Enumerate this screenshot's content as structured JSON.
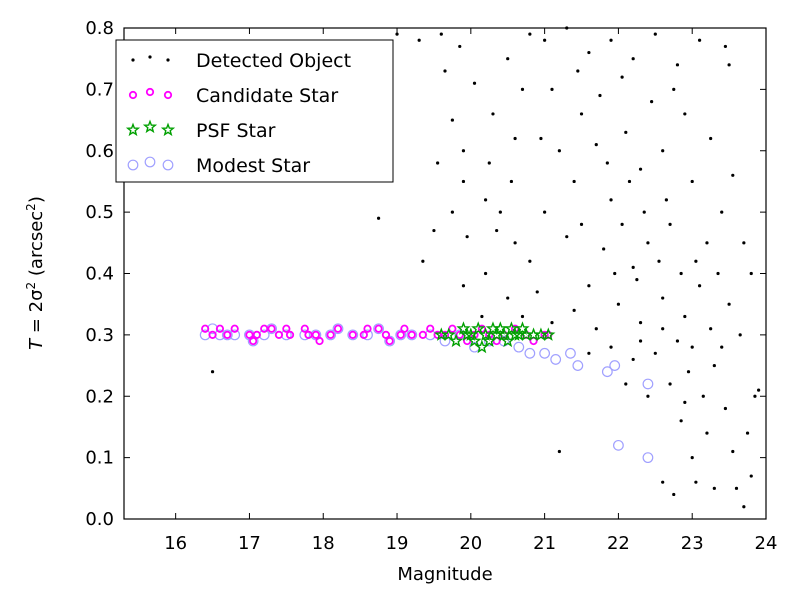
{
  "chart_data": {
    "type": "scatter",
    "xlabel": "Magnitude",
    "ylabel_main": "T",
    "ylabel_rest": " = 2σ",
    "ylabel_sup": "2",
    "ylabel_unit": " (arcsec",
    "ylabel_unit_sup": "2",
    "ylabel_close": ")",
    "xlim": [
      15.3,
      24.0
    ],
    "ylim": [
      0.0,
      0.8
    ],
    "xticks": [
      16,
      17,
      18,
      19,
      20,
      21,
      22,
      23,
      24
    ],
    "yticks": [
      0.0,
      0.1,
      0.2,
      0.3,
      0.4,
      0.5,
      0.6,
      0.7,
      0.8
    ],
    "ytick_labels": [
      "0.0",
      "0.1",
      "0.2",
      "0.3",
      "0.4",
      "0.5",
      "0.6",
      "0.7",
      "0.8"
    ],
    "grid": false,
    "legend_position": "top-left",
    "series": [
      {
        "name": "Detected Object",
        "marker": "dot",
        "color": "#000000",
        "points": [
          [
            16.5,
            0.24
          ],
          [
            18.75,
            0.49
          ],
          [
            19.35,
            0.42
          ],
          [
            21.2,
            0.11
          ],
          [
            22.6,
            0.06
          ],
          [
            22.75,
            0.04
          ],
          [
            23.05,
            0.06
          ],
          [
            23.3,
            0.05
          ],
          [
            23.7,
            0.02
          ],
          [
            19.0,
            0.79
          ],
          [
            19.3,
            0.78
          ],
          [
            19.6,
            0.79
          ],
          [
            19.65,
            0.73
          ],
          [
            19.85,
            0.77
          ],
          [
            19.75,
            0.65
          ],
          [
            19.9,
            0.6
          ],
          [
            19.55,
            0.58
          ],
          [
            20.05,
            0.71
          ],
          [
            19.75,
            0.5
          ],
          [
            19.5,
            0.47
          ],
          [
            19.95,
            0.46
          ],
          [
            19.9,
            0.38
          ],
          [
            20.2,
            0.52
          ],
          [
            19.9,
            0.55
          ],
          [
            20.3,
            0.66
          ],
          [
            20.5,
            0.75
          ],
          [
            20.6,
            0.62
          ],
          [
            20.8,
            0.79
          ],
          [
            20.7,
            0.7
          ],
          [
            21.0,
            0.78
          ],
          [
            21.3,
            0.8
          ],
          [
            21.6,
            0.76
          ],
          [
            21.9,
            0.78
          ],
          [
            22.2,
            0.75
          ],
          [
            22.5,
            0.79
          ],
          [
            22.8,
            0.74
          ],
          [
            23.1,
            0.78
          ],
          [
            23.45,
            0.77
          ],
          [
            23.5,
            0.74
          ],
          [
            23.25,
            0.62
          ],
          [
            23.55,
            0.56
          ],
          [
            23.4,
            0.5
          ],
          [
            23.7,
            0.45
          ],
          [
            23.8,
            0.4
          ],
          [
            23.85,
            0.2
          ],
          [
            23.75,
            0.14
          ],
          [
            23.8,
            0.07
          ],
          [
            23.6,
            0.05
          ],
          [
            23.9,
            0.21
          ],
          [
            23.65,
            0.3
          ],
          [
            23.5,
            0.35
          ],
          [
            23.3,
            0.25
          ],
          [
            23.45,
            0.18
          ],
          [
            23.2,
            0.14
          ],
          [
            23.0,
            0.1
          ],
          [
            22.85,
            0.16
          ],
          [
            23.15,
            0.2
          ],
          [
            22.95,
            0.24
          ],
          [
            23.55,
            0.11
          ],
          [
            20.4,
            0.5
          ],
          [
            20.6,
            0.45
          ],
          [
            20.2,
            0.4
          ],
          [
            20.5,
            0.36
          ],
          [
            20.8,
            0.42
          ],
          [
            21.0,
            0.5
          ],
          [
            21.2,
            0.6
          ],
          [
            21.4,
            0.55
          ],
          [
            21.1,
            0.7
          ],
          [
            21.5,
            0.66
          ],
          [
            21.7,
            0.61
          ],
          [
            21.9,
            0.52
          ],
          [
            22.1,
            0.63
          ],
          [
            22.3,
            0.57
          ],
          [
            22.6,
            0.6
          ],
          [
            22.9,
            0.66
          ],
          [
            23.0,
            0.55
          ],
          [
            22.7,
            0.48
          ],
          [
            22.4,
            0.45
          ],
          [
            22.2,
            0.41
          ],
          [
            21.8,
            0.44
          ],
          [
            21.6,
            0.38
          ],
          [
            21.4,
            0.34
          ],
          [
            21.7,
            0.31
          ],
          [
            22.0,
            0.35
          ],
          [
            22.3,
            0.32
          ],
          [
            22.6,
            0.36
          ],
          [
            22.9,
            0.33
          ],
          [
            23.1,
            0.38
          ],
          [
            23.2,
            0.45
          ],
          [
            22.5,
            0.27
          ],
          [
            22.8,
            0.29
          ],
          [
            23.0,
            0.28
          ],
          [
            22.2,
            0.26
          ],
          [
            21.9,
            0.28
          ],
          [
            21.6,
            0.27
          ],
          [
            22.1,
            0.22
          ],
          [
            22.4,
            0.2
          ],
          [
            22.7,
            0.22
          ],
          [
            22.9,
            0.19
          ],
          [
            21.3,
            0.46
          ],
          [
            21.5,
            0.48
          ],
          [
            20.9,
            0.37
          ],
          [
            20.7,
            0.33
          ],
          [
            21.1,
            0.32
          ],
          [
            22.05,
            0.48
          ],
          [
            22.35,
            0.5
          ],
          [
            22.65,
            0.52
          ],
          [
            22.15,
            0.55
          ],
          [
            21.85,
            0.58
          ],
          [
            22.45,
            0.68
          ],
          [
            22.75,
            0.7
          ],
          [
            22.05,
            0.72
          ],
          [
            21.75,
            0.69
          ],
          [
            21.45,
            0.73
          ],
          [
            20.25,
            0.58
          ],
          [
            20.55,
            0.55
          ],
          [
            20.95,
            0.62
          ],
          [
            20.35,
            0.47
          ],
          [
            20.15,
            0.33
          ],
          [
            22.55,
            0.42
          ],
          [
            22.25,
            0.39
          ],
          [
            22.85,
            0.4
          ],
          [
            23.05,
            0.42
          ],
          [
            23.35,
            0.4
          ],
          [
            23.25,
            0.31
          ],
          [
            23.4,
            0.28
          ],
          [
            22.6,
            0.31
          ],
          [
            22.3,
            0.29
          ],
          [
            21.95,
            0.4
          ]
        ]
      },
      {
        "name": "Candidate Star",
        "marker": "circle",
        "color": "#ff00ff",
        "points": [
          [
            16.4,
            0.31
          ],
          [
            16.5,
            0.3
          ],
          [
            16.6,
            0.31
          ],
          [
            16.7,
            0.3
          ],
          [
            16.8,
            0.31
          ],
          [
            17.0,
            0.3
          ],
          [
            17.05,
            0.29
          ],
          [
            17.1,
            0.3
          ],
          [
            17.2,
            0.31
          ],
          [
            17.3,
            0.31
          ],
          [
            17.4,
            0.3
          ],
          [
            17.5,
            0.31
          ],
          [
            17.55,
            0.3
          ],
          [
            17.75,
            0.31
          ],
          [
            17.8,
            0.3
          ],
          [
            17.9,
            0.3
          ],
          [
            17.95,
            0.29
          ],
          [
            18.1,
            0.3
          ],
          [
            18.2,
            0.31
          ],
          [
            18.4,
            0.3
          ],
          [
            18.55,
            0.3
          ],
          [
            18.6,
            0.31
          ],
          [
            18.75,
            0.31
          ],
          [
            18.85,
            0.3
          ],
          [
            18.9,
            0.29
          ],
          [
            19.05,
            0.3
          ],
          [
            19.1,
            0.31
          ],
          [
            19.2,
            0.3
          ],
          [
            19.35,
            0.3
          ],
          [
            19.45,
            0.31
          ],
          [
            19.55,
            0.3
          ],
          [
            19.65,
            0.3
          ],
          [
            19.75,
            0.31
          ],
          [
            19.85,
            0.3
          ],
          [
            19.95,
            0.29
          ],
          [
            20.05,
            0.3
          ],
          [
            20.15,
            0.31
          ],
          [
            20.25,
            0.3
          ],
          [
            20.35,
            0.29
          ],
          [
            20.45,
            0.3
          ],
          [
            20.6,
            0.31
          ],
          [
            20.75,
            0.3
          ],
          [
            20.85,
            0.29
          ],
          [
            21.0,
            0.3
          ],
          [
            21.05,
            0.3
          ]
        ]
      },
      {
        "name": "PSF Star",
        "marker": "star",
        "color": "#00a000",
        "points": [
          [
            19.6,
            0.3
          ],
          [
            19.7,
            0.3
          ],
          [
            19.8,
            0.29
          ],
          [
            19.9,
            0.31
          ],
          [
            20.0,
            0.3
          ],
          [
            20.05,
            0.29
          ],
          [
            20.1,
            0.31
          ],
          [
            20.2,
            0.3
          ],
          [
            20.25,
            0.29
          ],
          [
            20.3,
            0.31
          ],
          [
            20.35,
            0.3
          ],
          [
            20.4,
            0.31
          ],
          [
            20.45,
            0.3
          ],
          [
            20.5,
            0.29
          ],
          [
            20.55,
            0.31
          ],
          [
            20.65,
            0.3
          ],
          [
            20.7,
            0.31
          ],
          [
            20.75,
            0.3
          ],
          [
            20.85,
            0.3
          ],
          [
            20.95,
            0.3
          ],
          [
            21.05,
            0.3
          ],
          [
            20.15,
            0.28
          ],
          [
            19.95,
            0.3
          ],
          [
            20.6,
            0.3
          ]
        ]
      },
      {
        "name": "Modest Star",
        "marker": "ring",
        "color": "#a0a0ff",
        "points": [
          [
            16.4,
            0.3
          ],
          [
            16.5,
            0.31
          ],
          [
            16.6,
            0.3
          ],
          [
            16.7,
            0.3
          ],
          [
            16.8,
            0.3
          ],
          [
            17.0,
            0.3
          ],
          [
            17.05,
            0.29
          ],
          [
            17.2,
            0.3
          ],
          [
            17.3,
            0.31
          ],
          [
            17.5,
            0.3
          ],
          [
            17.75,
            0.3
          ],
          [
            17.9,
            0.3
          ],
          [
            18.1,
            0.3
          ],
          [
            18.2,
            0.31
          ],
          [
            18.4,
            0.3
          ],
          [
            18.6,
            0.3
          ],
          [
            18.75,
            0.31
          ],
          [
            18.9,
            0.29
          ],
          [
            19.05,
            0.3
          ],
          [
            19.2,
            0.3
          ],
          [
            19.45,
            0.3
          ],
          [
            19.65,
            0.29
          ],
          [
            19.85,
            0.3
          ],
          [
            20.05,
            0.28
          ],
          [
            20.25,
            0.29
          ],
          [
            20.45,
            0.29
          ],
          [
            20.65,
            0.28
          ],
          [
            20.8,
            0.27
          ],
          [
            21.0,
            0.27
          ],
          [
            21.15,
            0.26
          ],
          [
            21.35,
            0.27
          ],
          [
            21.45,
            0.25
          ],
          [
            21.85,
            0.24
          ],
          [
            21.95,
            0.25
          ],
          [
            22.4,
            0.22
          ],
          [
            22.0,
            0.12
          ],
          [
            22.4,
            0.1
          ]
        ]
      }
    ]
  }
}
